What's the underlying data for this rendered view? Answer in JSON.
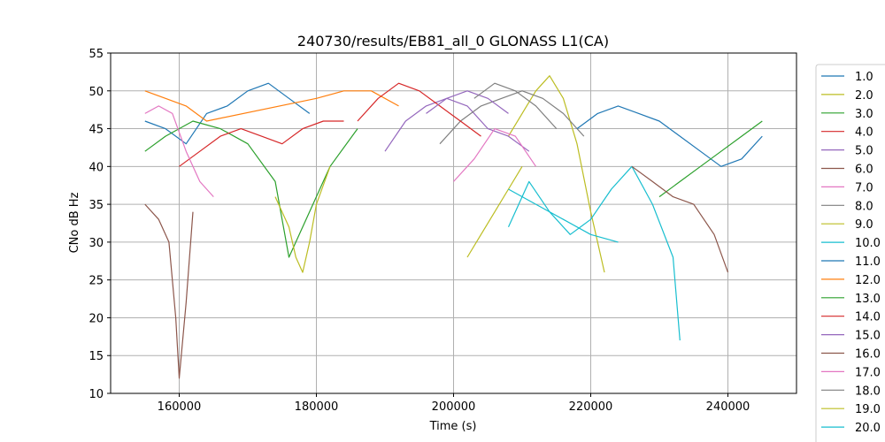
{
  "chart_data": {
    "type": "line",
    "title": "240730/results/EB81_all_0 GLONASS L1(CA)",
    "xlabel": "Time (s)",
    "ylabel": "CNo dB Hz",
    "xlim": [
      150000,
      250000
    ],
    "ylim": [
      10,
      55
    ],
    "x_ticks": [
      160000,
      180000,
      200000,
      220000,
      240000
    ],
    "x_tick_labels": [
      "160000",
      "180000",
      "200000",
      "220000",
      "240000"
    ],
    "y_ticks": [
      10,
      15,
      20,
      25,
      30,
      35,
      40,
      45,
      50,
      55
    ],
    "y_tick_labels": [
      "10",
      "15",
      "20",
      "25",
      "30",
      "35",
      "40",
      "45",
      "50",
      "55"
    ],
    "grid": true,
    "legend_position": "right-outside",
    "series": [
      {
        "name": "1.0",
        "color": "#1f77b4",
        "x": [
          155000,
          158000,
          161000,
          164000,
          167000,
          170000,
          173000,
          176000,
          179000
        ],
        "y": [
          46,
          45,
          43,
          47,
          48,
          50,
          51,
          49,
          47
        ]
      },
      {
        "name": "2.0",
        "color": "#bcbd22",
        "x": [
          208000,
          210000,
          212000,
          214000,
          216000,
          218000,
          220000,
          222000
        ],
        "y": [
          44,
          47,
          50,
          52,
          49,
          43,
          34,
          26
        ]
      },
      {
        "name": "3.0",
        "color": "#2ca02c",
        "x": [
          155000,
          158000,
          162000,
          166000,
          170000,
          174000,
          176000,
          178000,
          182000,
          186000
        ],
        "y": [
          42,
          44,
          46,
          45,
          43,
          38,
          28,
          32,
          40,
          45
        ]
      },
      {
        "name": "4.0",
        "color": "#d62728",
        "x": [
          160000,
          163000,
          166000,
          169000,
          172000,
          175000,
          178000,
          181000,
          184000
        ],
        "y": [
          40,
          42,
          44,
          45,
          44,
          43,
          45,
          46,
          46
        ]
      },
      {
        "name": "5.0",
        "color": "#9467bd",
        "x": [
          190000,
          193000,
          196000,
          199000,
          202000,
          205000,
          208000,
          211000
        ],
        "y": [
          42,
          46,
          48,
          49,
          48,
          45,
          44,
          42
        ]
      },
      {
        "name": "6.0",
        "color": "#8c564b",
        "x": [
          155000,
          157000,
          158500,
          159500,
          160000,
          161000,
          162000
        ],
        "y": [
          35,
          33,
          30,
          20,
          12,
          22,
          34
        ]
      },
      {
        "name": "7.0",
        "color": "#e377c2",
        "x": [
          155000,
          157000,
          159000,
          161000,
          163000,
          165000
        ],
        "y": [
          47,
          48,
          47,
          42,
          38,
          36
        ]
      },
      {
        "name": "8.0",
        "color": "#7f7f7f",
        "x": [
          198000,
          201000,
          204000,
          207000,
          210000,
          213000,
          216000,
          219000
        ],
        "y": [
          43,
          46,
          48,
          49,
          50,
          49,
          47,
          44
        ]
      },
      {
        "name": "9.0",
        "color": "#bcbd22",
        "x": [
          174000,
          176000,
          177000,
          178000,
          179000,
          180000,
          182000
        ],
        "y": [
          36,
          32,
          28,
          26,
          30,
          35,
          40
        ]
      },
      {
        "name": "10.0",
        "color": "#17becf",
        "x": [
          208000,
          211000,
          214000,
          217000,
          220000,
          223000,
          226000,
          229000,
          232000,
          233000
        ],
        "y": [
          32,
          38,
          34,
          31,
          33,
          37,
          40,
          35,
          28,
          17
        ]
      },
      {
        "name": "11.0",
        "color": "#1f77b4",
        "x": [
          218000,
          221000,
          224000,
          227000,
          230000,
          233000,
          236000,
          239000,
          242000,
          245000
        ],
        "y": [
          45,
          47,
          48,
          47,
          46,
          44,
          42,
          40,
          41,
          44
        ]
      },
      {
        "name": "12.0",
        "color": "#ff7f0e",
        "x": [
          155000,
          158000,
          161000,
          164000,
          180000,
          184000,
          188000,
          192000
        ],
        "y": [
          50,
          49,
          48,
          46,
          49,
          50,
          50,
          48
        ]
      },
      {
        "name": "13.0",
        "color": "#2ca02c",
        "x": [
          230000,
          233000,
          236000,
          239000,
          242000,
          245000
        ],
        "y": [
          36,
          38,
          40,
          42,
          44,
          46
        ]
      },
      {
        "name": "14.0",
        "color": "#d62728",
        "x": [
          186000,
          189000,
          192000,
          195000,
          198000,
          201000,
          204000
        ],
        "y": [
          46,
          49,
          51,
          50,
          48,
          46,
          44
        ]
      },
      {
        "name": "15.0",
        "color": "#9467bd",
        "x": [
          196000,
          199000,
          202000,
          205000,
          208000
        ],
        "y": [
          47,
          49,
          50,
          49,
          47
        ]
      },
      {
        "name": "16.0",
        "color": "#8c564b",
        "x": [
          226000,
          229000,
          232000,
          235000,
          238000,
          240000
        ],
        "y": [
          40,
          38,
          36,
          35,
          31,
          26
        ]
      },
      {
        "name": "17.0",
        "color": "#e377c2",
        "x": [
          200000,
          203000,
          206000,
          209000,
          212000
        ],
        "y": [
          38,
          41,
          45,
          44,
          40
        ]
      },
      {
        "name": "18.0",
        "color": "#7f7f7f",
        "x": [
          203000,
          206000,
          209000,
          212000,
          215000
        ],
        "y": [
          49,
          51,
          50,
          48,
          45
        ]
      },
      {
        "name": "19.0",
        "color": "#bcbd22",
        "x": [
          202000,
          204000,
          206000,
          208000,
          210000
        ],
        "y": [
          28,
          31,
          34,
          37,
          40
        ]
      },
      {
        "name": "20.0",
        "color": "#17becf",
        "x": [
          208000,
          212000,
          216000,
          220000,
          224000
        ],
        "y": [
          37,
          35,
          33,
          31,
          30
        ]
      }
    ]
  }
}
